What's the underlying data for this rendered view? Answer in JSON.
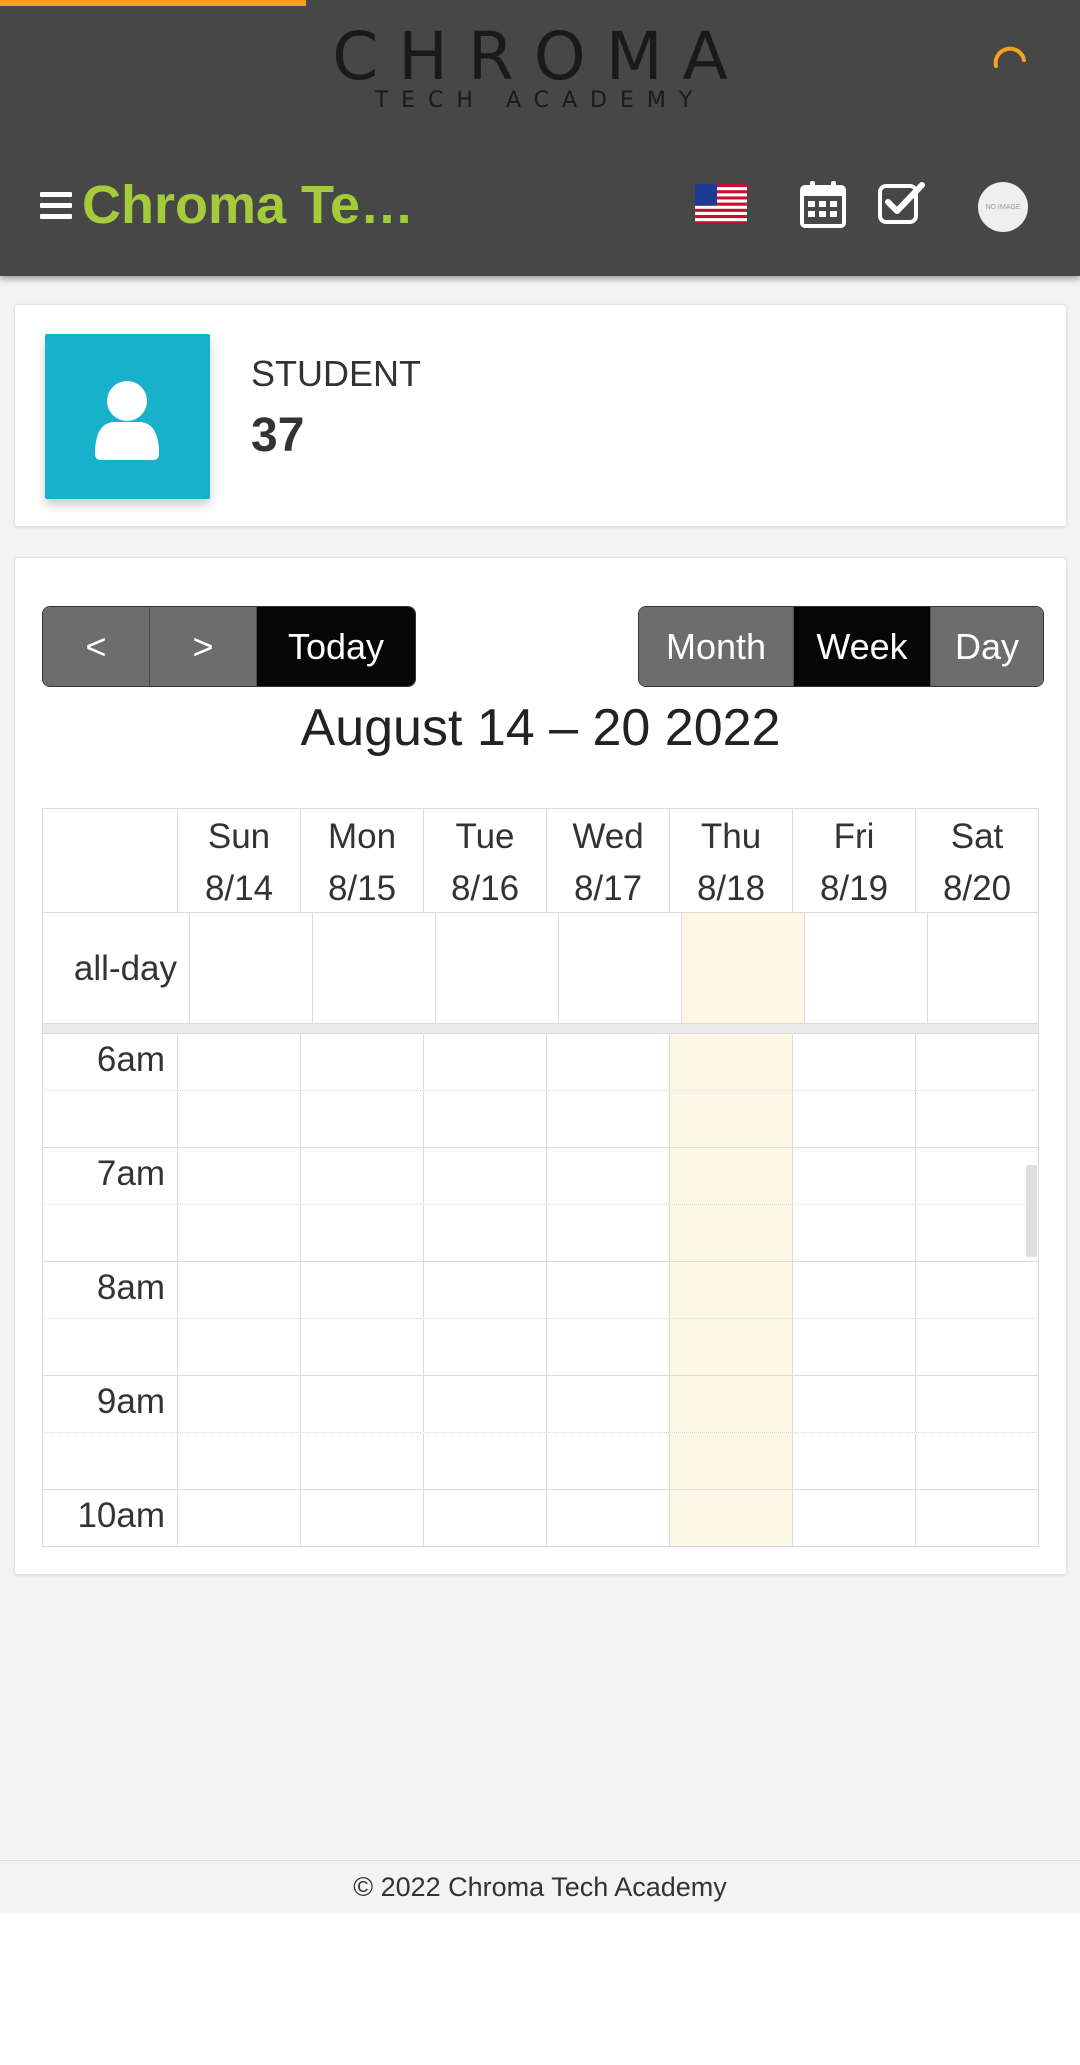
{
  "header": {
    "logo_main": "CHROMA",
    "logo_sub": "TECH ACADEMY",
    "brand": "Chroma Te…",
    "avatar_text": "NO IMAGE"
  },
  "icons": {
    "menu": "hamburger-menu-icon",
    "flag": "us-flag-icon",
    "calendar": "calendar-icon",
    "check": "checkbox-icon",
    "user": "user-icon",
    "spinner": "loading-spinner-icon"
  },
  "colors": {
    "header_bg": "#474747",
    "brand_green": "#a4cc3a",
    "progress_orange": "#f7a21b",
    "stat_teal": "#17b1c9",
    "today_highlight": "#fcf7e4"
  },
  "stat": {
    "label": "STUDENT",
    "value": "37"
  },
  "calendar": {
    "nav": {
      "prev": "<",
      "next": ">",
      "today": "Today"
    },
    "views": {
      "month": "Month",
      "week": "Week",
      "day": "Day",
      "active": "Week"
    },
    "title": "August 14 – 20 2022",
    "days": [
      {
        "name": "Sun",
        "date": "8/14"
      },
      {
        "name": "Mon",
        "date": "8/15"
      },
      {
        "name": "Tue",
        "date": "8/16"
      },
      {
        "name": "Wed",
        "date": "8/17"
      },
      {
        "name": "Thu",
        "date": "8/18"
      },
      {
        "name": "Fri",
        "date": "8/19"
      },
      {
        "name": "Sat",
        "date": "8/20"
      }
    ],
    "today_index": 4,
    "allday_label": "all-day",
    "times": [
      "6am",
      "7am",
      "8am",
      "9am",
      "10am"
    ]
  },
  "footer": {
    "copyright": "© 2022 Chroma Tech Academy"
  }
}
